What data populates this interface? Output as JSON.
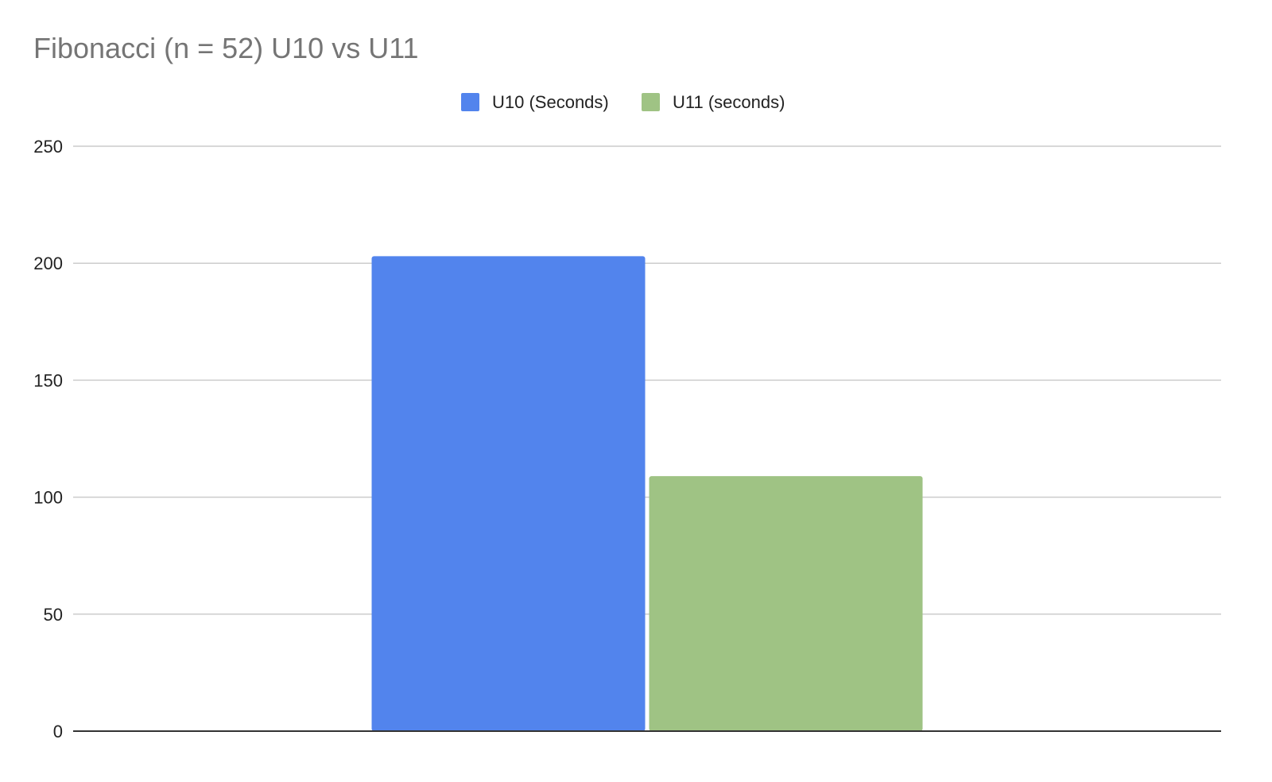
{
  "chart_data": {
    "type": "bar",
    "title": "Fibonacci (n = 52) U10 vs U11",
    "categories": [
      ""
    ],
    "series": [
      {
        "name": "U10 (Seconds)",
        "values": [
          203
        ],
        "color": "#5284ED"
      },
      {
        "name": "U11 (seconds)",
        "values": [
          109
        ],
        "color": "#9FC384"
      }
    ],
    "xlabel": "",
    "ylabel": "",
    "ylim": [
      0,
      250
    ],
    "yticks": [
      0,
      50,
      100,
      150,
      200,
      250
    ],
    "grid": true,
    "legend_position": "top-center",
    "colors": {
      "gridline": "#cccccc",
      "baseline": "#333333",
      "title": "#757575"
    }
  }
}
